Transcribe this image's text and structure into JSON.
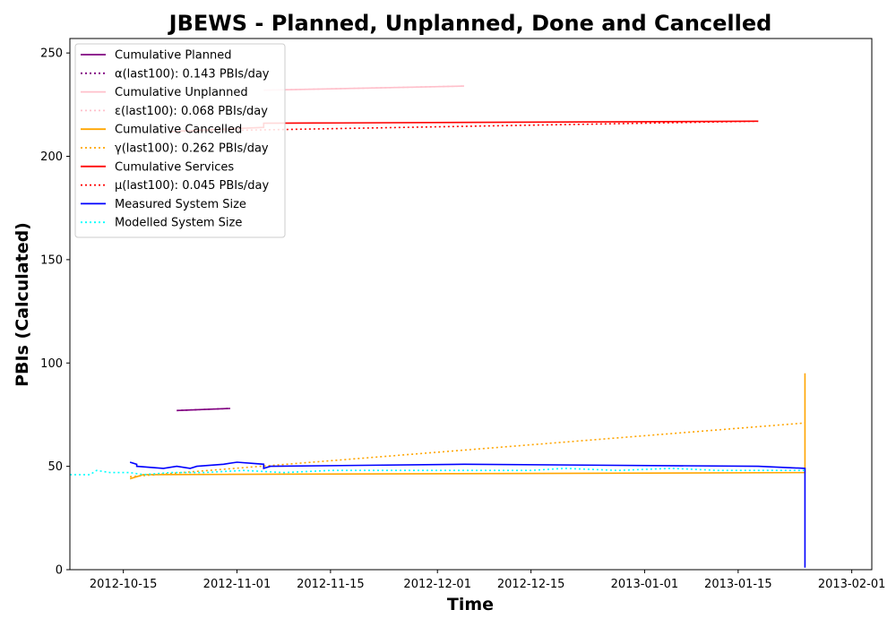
{
  "chart_data": {
    "type": "line",
    "title": "JBEWS - Planned, Unplanned, Done  and Cancelled",
    "xlabel": "Time",
    "ylabel": "PBIs (Calculated)",
    "x_is_date": true,
    "xlim": [
      "2012-10-07",
      "2013-02-04"
    ],
    "ylim": [
      0,
      257
    ],
    "xticks": [
      "2012-10-15",
      "2012-11-01",
      "2012-11-15",
      "2012-12-01",
      "2012-12-15",
      "2013-01-01",
      "2013-01-15",
      "2013-02-01"
    ],
    "yticks": [
      0,
      50,
      100,
      150,
      200,
      250
    ],
    "grid": false,
    "legend_position": "upper-left",
    "series": [
      {
        "name": "Cumulative Planned",
        "color": "#800080",
        "style": "solid",
        "points": [
          [
            "2012-10-23",
            77
          ],
          [
            "2012-10-31",
            78
          ]
        ]
      },
      {
        "name": "α(last100): 0.143 PBIs/day",
        "color": "#800080",
        "style": "dotted",
        "points": [
          [
            "2012-10-23",
            77
          ],
          [
            "2012-10-31",
            78
          ]
        ]
      },
      {
        "name": "Cumulative Unplanned",
        "color": "#ffc0cb",
        "style": "solid",
        "points": [
          [
            "2012-11-05",
            232
          ],
          [
            "2012-12-05",
            234
          ]
        ]
      },
      {
        "name": "ε(last100): 0.068 PBIs/day",
        "color": "#ffc0cb",
        "style": "dotted",
        "points": [
          [
            "2012-11-05",
            232
          ],
          [
            "2012-12-05",
            234
          ]
        ]
      },
      {
        "name": "Cumulative Cancelled",
        "color": "#ffa500",
        "style": "solid",
        "points": [
          [
            "2012-10-16",
            44
          ],
          [
            "2012-10-17",
            45
          ],
          [
            "2012-10-18",
            46
          ],
          [
            "2013-01-25",
            47
          ],
          [
            "2013-01-25",
            95
          ]
        ]
      },
      {
        "name": "γ(last100): 0.262 PBIs/day",
        "color": "#ffa500",
        "style": "dotted",
        "points": [
          [
            "2012-10-16",
            45
          ],
          [
            "2013-01-25",
            71
          ]
        ]
      },
      {
        "name": "Cumulative Services",
        "color": "#ff0000",
        "style": "solid",
        "points": [
          [
            "2012-10-22",
            212
          ],
          [
            "2012-11-05",
            214
          ],
          [
            "2012-11-05",
            216
          ],
          [
            "2013-01-18",
            217
          ]
        ]
      },
      {
        "name": "μ(last100): 0.045 PBIs/day",
        "color": "#ff0000",
        "style": "dotted",
        "points": [
          [
            "2012-10-22",
            212
          ],
          [
            "2013-01-18",
            217
          ]
        ]
      },
      {
        "name": "Measured System Size",
        "color": "#0000ff",
        "style": "solid",
        "points": [
          [
            "2012-10-16",
            52
          ],
          [
            "2012-10-17",
            51
          ],
          [
            "2012-10-17",
            50
          ],
          [
            "2012-10-21",
            49
          ],
          [
            "2012-10-23",
            50
          ],
          [
            "2012-10-25",
            49
          ],
          [
            "2012-10-26",
            50
          ],
          [
            "2012-10-30",
            51
          ],
          [
            "2012-11-01",
            52
          ],
          [
            "2012-11-05",
            51
          ],
          [
            "2012-11-05",
            49
          ],
          [
            "2012-11-06",
            50
          ],
          [
            "2012-12-05",
            51
          ],
          [
            "2013-01-18",
            50
          ],
          [
            "2013-01-25",
            49
          ],
          [
            "2013-01-25",
            1
          ]
        ]
      },
      {
        "name": "Modelled System Size",
        "color": "#00ffff",
        "style": "dotted",
        "points": [
          [
            "2012-10-07",
            46
          ],
          [
            "2012-10-10",
            46
          ],
          [
            "2012-10-11",
            48
          ],
          [
            "2012-10-13",
            47
          ],
          [
            "2012-10-16",
            47
          ],
          [
            "2012-10-18",
            46
          ],
          [
            "2012-10-22",
            47
          ],
          [
            "2012-10-27",
            47
          ],
          [
            "2012-11-02",
            48
          ],
          [
            "2012-11-08",
            47
          ],
          [
            "2012-11-15",
            48
          ],
          [
            "2012-11-22",
            48
          ],
          [
            "2012-12-01",
            48
          ],
          [
            "2012-12-08",
            48
          ],
          [
            "2012-12-15",
            48
          ],
          [
            "2012-12-20",
            49
          ],
          [
            "2012-12-28",
            48
          ],
          [
            "2013-01-05",
            49
          ],
          [
            "2013-01-12",
            48
          ],
          [
            "2013-01-18",
            48
          ],
          [
            "2013-01-25",
            48
          ]
        ]
      }
    ]
  }
}
